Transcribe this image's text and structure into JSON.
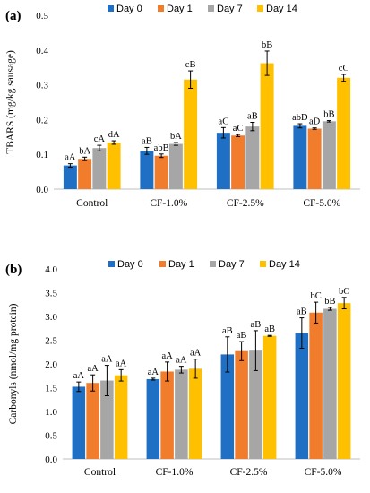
{
  "chart_data": [
    {
      "panel": "(a)",
      "type": "bar",
      "ylabel": "TBARS (mg/kg sausage)",
      "ylim": [
        0,
        0.5
      ],
      "yticks": [
        "0.0",
        "0.1",
        "0.2",
        "0.3",
        "0.4",
        "0.5"
      ],
      "ytick_values": [
        0,
        0.1,
        0.2,
        0.3,
        0.4,
        0.5
      ],
      "categories": [
        "Control",
        "CF-1.0%",
        "CF-2.5%",
        "CF-5.0%"
      ],
      "legend_position": "top",
      "series": [
        {
          "name": "Day 0",
          "color": "#1f6fc5",
          "values": [
            0.068,
            0.11,
            0.162,
            0.182
          ],
          "errors": [
            0.005,
            0.01,
            0.015,
            0.006
          ],
          "labels": [
            "aA",
            "aB",
            "aC",
            "abD"
          ]
        },
        {
          "name": "Day 1",
          "color": "#f07c2c",
          "values": [
            0.087,
            0.096,
            0.154,
            0.174
          ],
          "errors": [
            0.005,
            0.005,
            0.003,
            0.002
          ],
          "labels": [
            "bA",
            "abB",
            "aC",
            "aD"
          ]
        },
        {
          "name": "Day 7",
          "color": "#a6a6a6",
          "values": [
            0.118,
            0.13,
            0.18,
            0.195
          ],
          "errors": [
            0.008,
            0.004,
            0.012,
            0.002
          ],
          "labels": [
            "cA",
            "bA",
            "aB",
            "bB"
          ]
        },
        {
          "name": "Day 14",
          "color": "#ffc000",
          "values": [
            0.134,
            0.315,
            0.362,
            0.32
          ],
          "errors": [
            0.005,
            0.025,
            0.035,
            0.01
          ],
          "labels": [
            "dA",
            "cB",
            "bB",
            "cC"
          ]
        }
      ]
    },
    {
      "panel": "(b)",
      "type": "bar",
      "ylabel": "Carbonyls (nmol/mg protein)",
      "ylim": [
        0,
        4.0
      ],
      "yticks": [
        "0.0",
        "0.5",
        "1.0",
        "1.5",
        "2.0",
        "2.5",
        "3.0",
        "3.5",
        "4.0"
      ],
      "ytick_values": [
        0,
        0.5,
        1.0,
        1.5,
        2.0,
        2.5,
        3.0,
        3.5,
        4.0
      ],
      "categories": [
        "Control",
        "CF-1.0%",
        "CF-2.5%",
        "CF-5.0%"
      ],
      "legend_position": "top",
      "series": [
        {
          "name": "Day 0",
          "color": "#1f6fc5",
          "values": [
            1.52,
            1.68,
            2.2,
            2.65
          ],
          "errors": [
            0.1,
            0.02,
            0.37,
            0.32
          ],
          "labels": [
            "aA",
            "aA",
            "aB",
            "aB"
          ]
        },
        {
          "name": "Day 1",
          "color": "#f07c2c",
          "values": [
            1.6,
            1.84,
            2.27,
            3.08
          ],
          "errors": [
            0.17,
            0.2,
            0.2,
            0.22
          ],
          "labels": [
            "aA",
            "aA",
            "aB",
            "bC"
          ]
        },
        {
          "name": "Day 7",
          "color": "#a6a6a6",
          "values": [
            1.65,
            1.88,
            2.28,
            3.16
          ],
          "errors": [
            0.32,
            0.07,
            0.42,
            0.03
          ],
          "labels": [
            "aA",
            "aA",
            "aB",
            "bB"
          ]
        },
        {
          "name": "Day 14",
          "color": "#ffc000",
          "values": [
            1.76,
            1.9,
            2.59,
            3.28
          ],
          "errors": [
            0.12,
            0.2,
            0.01,
            0.12
          ],
          "labels": [
            "aA",
            "aA",
            "aB",
            "bC"
          ]
        }
      ]
    }
  ]
}
